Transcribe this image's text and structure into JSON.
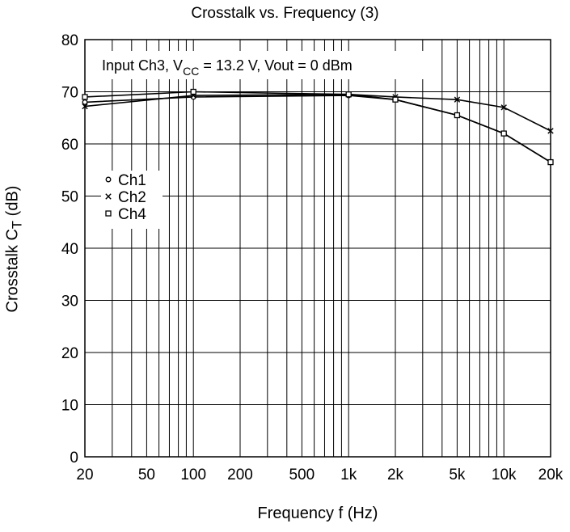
{
  "chart_data": {
    "type": "line",
    "title": "Crosstalk vs. Frequency (3)",
    "xlabel": "Frequency  f  (Hz)",
    "ylabel": {
      "main": "Crosstalk  C",
      "sub": "T",
      "unit": "  (dB)"
    },
    "x_scale": "log",
    "xlim": [
      20,
      20000
    ],
    "ylim": [
      0,
      80
    ],
    "x_ticks": [
      20,
      50,
      100,
      200,
      500,
      1000,
      2000,
      5000,
      10000,
      20000
    ],
    "x_tick_labels": [
      "20",
      "50",
      "100",
      "200",
      "500",
      "1k",
      "2k",
      "5k",
      "10k",
      "20k"
    ],
    "y_ticks": [
      0,
      10,
      20,
      30,
      40,
      50,
      60,
      70,
      80
    ],
    "y_tick_labels": [
      "0",
      "10",
      "20",
      "30",
      "40",
      "50",
      "60",
      "70",
      "80"
    ],
    "grid": true,
    "annotation": {
      "prefix": "Input Ch3, V",
      "sub": "CC",
      "suffix": " = 13.2 V, Vout = 0 dBm"
    },
    "legend_position": "left",
    "series": [
      {
        "name": "Ch1",
        "marker": "circle",
        "x": [
          20,
          100,
          1000,
          2000,
          5000,
          10000,
          20000
        ],
        "y": [
          68,
          69,
          69.3,
          68.5,
          65.5,
          62,
          56.5
        ]
      },
      {
        "name": "Ch2",
        "marker": "x",
        "x": [
          20,
          100,
          1000,
          2000,
          5000,
          10000,
          20000
        ],
        "y": [
          67.2,
          69.3,
          69.5,
          69,
          68.5,
          67,
          62.5
        ]
      },
      {
        "name": "Ch4",
        "marker": "square",
        "x": [
          20,
          100,
          1000,
          2000,
          5000,
          10000,
          20000
        ],
        "y": [
          69,
          70,
          69.5,
          68.5,
          65.5,
          62,
          56.5
        ]
      }
    ]
  }
}
